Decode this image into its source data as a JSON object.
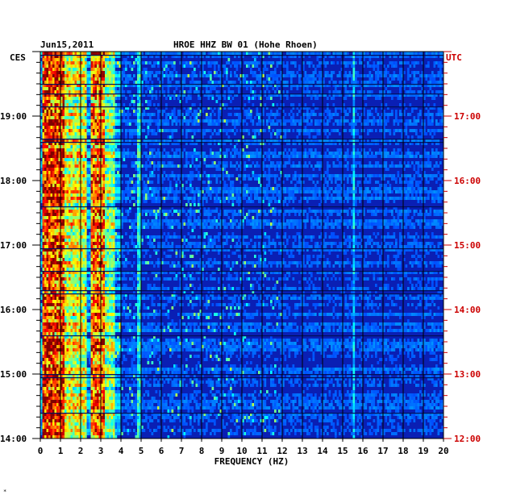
{
  "header": {
    "date": "Jun15,2011",
    "station": "HROE HHZ BW 01 (Hohe Rhoen)"
  },
  "left_axis_label": "CES",
  "right_axis_label": "UTC",
  "corner_mark": "*",
  "colors": {
    "background_field": "#0a1fb4",
    "left_axis_text": "#000000",
    "right_axis_text": "#cc0000",
    "grid": "#000000"
  },
  "chart_data": {
    "type": "heatmap",
    "title": "",
    "xlabel": "FREQUENCY (HZ)",
    "xlim": [
      0,
      20
    ],
    "x_ticks": [
      "0",
      "1",
      "2",
      "3",
      "4",
      "5",
      "6",
      "7",
      "8",
      "9",
      "10",
      "11",
      "12",
      "13",
      "14",
      "15",
      "16",
      "17",
      "18",
      "19",
      "20"
    ],
    "time_span_hours": [
      14,
      20
    ],
    "left_ticks": [
      {
        "hour": 19,
        "label": "19:00"
      },
      {
        "hour": 18,
        "label": "18:00"
      },
      {
        "hour": 17,
        "label": "17:00"
      },
      {
        "hour": 16,
        "label": "16:00"
      },
      {
        "hour": 15,
        "label": "15:00"
      },
      {
        "hour": 14,
        "label": "14:00"
      }
    ],
    "right_ticks": [
      {
        "hour": 19,
        "label": "17:00"
      },
      {
        "hour": 18,
        "label": "16:00"
      },
      {
        "hour": 17,
        "label": "15:00"
      },
      {
        "hour": 16,
        "label": "14:00"
      },
      {
        "hour": 15,
        "label": "13:00"
      },
      {
        "hour": 14,
        "label": "12:00"
      }
    ],
    "colormap": "jet",
    "high_energy_bands_hz": [
      {
        "from": 0.1,
        "to": 1.2,
        "level": 0.85
      },
      {
        "from": 1.2,
        "to": 2.3,
        "level": 0.55
      },
      {
        "from": 2.5,
        "to": 3.2,
        "level": 0.75
      },
      {
        "from": 3.2,
        "to": 3.7,
        "level": 0.45
      },
      {
        "from": 4.8,
        "to": 5.0,
        "level": 0.4
      },
      {
        "from": 15.5,
        "to": 15.6,
        "level": 0.35
      }
    ]
  }
}
